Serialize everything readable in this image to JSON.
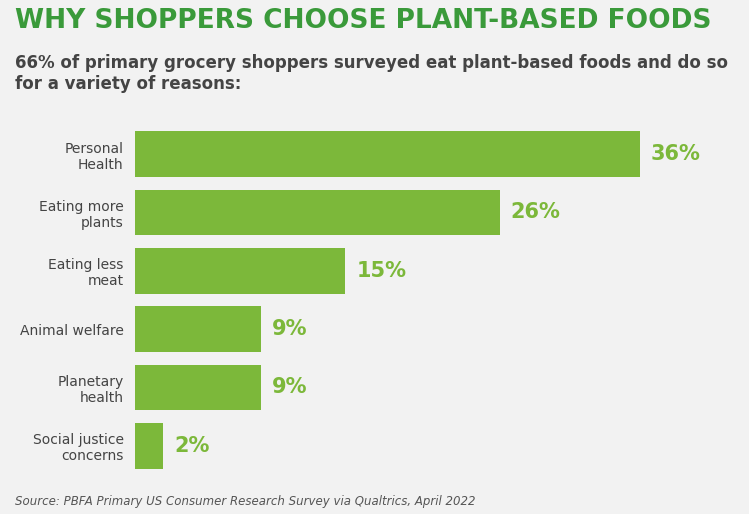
{
  "chart_data": {
    "type": "bar",
    "orientation": "horizontal",
    "title": "WHY SHOPPERS CHOOSE PLANT-BASED FOODS",
    "subtitle": "66% of primary grocery shoppers surveyed eat plant-based foods and do so for a variety of reasons:",
    "source": "Source: PBFA Primary US Consumer Research Survey via Qualtrics, April 2022",
    "categories": [
      "Personal Health",
      "Eating more plants",
      "Eating less meat",
      "Animal welfare",
      "Planetary health",
      "Social justice concerns"
    ],
    "values": [
      36,
      26,
      15,
      9,
      9,
      2
    ],
    "value_labels": [
      "36%",
      "26%",
      "15%",
      "9%",
      "9%",
      "2%"
    ],
    "color": "#7cb83a",
    "data_labels": true,
    "tick_labels": "y"
  }
}
